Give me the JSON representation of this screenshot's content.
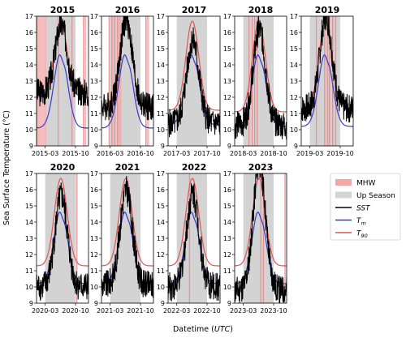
{
  "figure": {
    "ylabel": "Sea Surface Temperature (°C)",
    "xlabel_prefix": "Datetime (",
    "xlabel_unit": "UTC",
    "xlabel_suffix": ")"
  },
  "colors": {
    "mhw_fill": "#f4a6a6",
    "up_season_fill": "#d3d3d3",
    "sst": "#000000",
    "tm": "#3a3acc",
    "t90": "#e05555"
  },
  "legend": {
    "items": [
      {
        "label": "MHW",
        "kind": "patch",
        "color": "#f4a6a6"
      },
      {
        "label": "Up Season",
        "kind": "patch",
        "color": "#d3d3d3"
      },
      {
        "label": "SST",
        "kind": "line",
        "color": "#000000",
        "italic": true
      },
      {
        "label": "T",
        "sub": "m",
        "kind": "line",
        "color": "#3a3acc",
        "italic": true
      },
      {
        "label": "T",
        "sub": "90",
        "kind": "line",
        "color": "#e05555",
        "italic": true
      }
    ]
  },
  "chart_data": [
    {
      "type": "line",
      "title": "2015",
      "ylim": [
        9,
        17
      ],
      "yticks": [
        9,
        10,
        11,
        12,
        13,
        14,
        15,
        16,
        17
      ],
      "xlim_months": [
        0,
        12
      ],
      "xticks": [
        {
          "label": "2015-03",
          "m": 2
        },
        {
          "label": "2015-10",
          "m": 9
        }
      ],
      "up_season": [
        2,
        9
      ],
      "mhw": [
        [
          0.1,
          2.2
        ],
        [
          5.0,
          5.1
        ],
        [
          8.2,
          8.3
        ],
        [
          10.8,
          11.5
        ]
      ],
      "t90_base": 12.0,
      "t90_peak": 16.7,
      "tm_base": 10.1,
      "tm_peak": 14.8,
      "sst_base": 12.3,
      "sst_peak": 16.5
    },
    {
      "type": "line",
      "title": "2016",
      "ylim": [
        9,
        17
      ],
      "yticks": [
        9,
        10,
        11,
        12,
        13,
        14,
        15,
        16,
        17
      ],
      "xlim_months": [
        0,
        12
      ],
      "xticks": [
        {
          "label": "2016-03",
          "m": 2
        },
        {
          "label": "2016-10",
          "m": 9
        }
      ],
      "up_season": [
        2,
        9
      ],
      "mhw": [
        [
          1.7,
          2.0
        ],
        [
          2.4,
          2.7
        ],
        [
          3.0,
          3.3
        ],
        [
          3.7,
          4.6
        ],
        [
          10.2,
          11.0
        ]
      ],
      "t90_base": 11.3,
      "t90_peak": 16.7,
      "tm_base": 10.1,
      "tm_peak": 14.8,
      "sst_base": 11.4,
      "sst_peak": 16.8
    },
    {
      "type": "line",
      "title": "2017",
      "ylim": [
        9,
        17
      ],
      "yticks": [
        9,
        10,
        11,
        12,
        13,
        14,
        15,
        16,
        17
      ],
      "xlim_months": [
        0,
        12
      ],
      "xticks": [
        {
          "label": "2017-03",
          "m": 2
        },
        {
          "label": "2017-10",
          "m": 9
        }
      ],
      "up_season": [
        2,
        9
      ],
      "mhw": [],
      "t90_base": 11.2,
      "t90_peak": 16.7,
      "tm_base": 10.3,
      "tm_peak": 14.8,
      "sst_base": 10.4,
      "sst_peak": 15.5
    },
    {
      "type": "line",
      "title": "2018",
      "ylim": [
        9,
        17
      ],
      "yticks": [
        9,
        10,
        11,
        12,
        13,
        14,
        15,
        16,
        17
      ],
      "xlim_months": [
        0,
        12
      ],
      "xticks": [
        {
          "label": "2018-03",
          "m": 2
        },
        {
          "label": "2018-10",
          "m": 9
        }
      ],
      "up_season": [
        2,
        9
      ],
      "mhw": [
        [
          3.3,
          3.5
        ],
        [
          4.0,
          4.2
        ],
        [
          4.6,
          4.8
        ],
        [
          5.2,
          5.4
        ]
      ],
      "t90_base": 11.1,
      "t90_peak": 16.7,
      "tm_base": 10.2,
      "tm_peak": 14.8,
      "sst_base": 10.3,
      "sst_peak": 16.2
    },
    {
      "type": "line",
      "title": "2019",
      "ylim": [
        9,
        17
      ],
      "yticks": [
        9,
        10,
        11,
        12,
        13,
        14,
        15,
        16,
        17
      ],
      "xlim_months": [
        0,
        12
      ],
      "xticks": [
        {
          "label": "2019-03",
          "m": 2
        },
        {
          "label": "2019-10",
          "m": 9
        }
      ],
      "up_season": [
        2,
        9
      ],
      "mhw": [
        [
          3.5,
          3.6
        ],
        [
          5.4,
          5.6
        ],
        [
          6.0,
          6.3
        ],
        [
          6.5,
          6.8
        ],
        [
          7.2,
          7.5
        ],
        [
          7.9,
          8.1
        ]
      ],
      "t90_base": 11.3,
      "t90_peak": 16.7,
      "tm_base": 10.2,
      "tm_peak": 14.8,
      "sst_base": 11.3,
      "sst_peak": 17.0
    },
    {
      "type": "line",
      "title": "2020",
      "ylim": [
        9,
        17
      ],
      "yticks": [
        9,
        10,
        11,
        12,
        13,
        14,
        15,
        16,
        17
      ],
      "xlim_months": [
        0,
        12
      ],
      "xticks": [
        {
          "label": "2020-03",
          "m": 2
        },
        {
          "label": "2020-10",
          "m": 9
        }
      ],
      "up_season": [
        2,
        9
      ],
      "mhw": [
        [
          9.2,
          9.5
        ]
      ],
      "t90_base": 11.3,
      "t90_peak": 16.7,
      "tm_base": 10.2,
      "tm_peak": 14.8,
      "sst_base": 10.0,
      "sst_peak": 15.6
    },
    {
      "type": "line",
      "title": "2021",
      "ylim": [
        9,
        17
      ],
      "yticks": [
        9,
        10,
        11,
        12,
        13,
        14,
        15,
        16,
        17
      ],
      "xlim_months": [
        0,
        12
      ],
      "xticks": [
        {
          "label": "2021-03",
          "m": 2
        },
        {
          "label": "2021-10",
          "m": 9
        }
      ],
      "up_season": [
        2,
        9
      ],
      "mhw": [],
      "t90_base": 11.3,
      "t90_peak": 16.7,
      "tm_base": 10.2,
      "tm_peak": 14.8,
      "sst_base": 10.1,
      "sst_peak": 16.0
    },
    {
      "type": "line",
      "title": "2022",
      "ylim": [
        9,
        17
      ],
      "yticks": [
        9,
        10,
        11,
        12,
        13,
        14,
        15,
        16,
        17
      ],
      "xlim_months": [
        0,
        12
      ],
      "xticks": [
        {
          "label": "2022-03",
          "m": 2
        },
        {
          "label": "2022-10",
          "m": 9
        }
      ],
      "up_season": [
        2,
        9
      ],
      "mhw": [
        [
          4.9,
          5.1
        ]
      ],
      "t90_base": 11.3,
      "t90_peak": 16.7,
      "tm_base": 10.2,
      "tm_peak": 14.8,
      "sst_base": 10.0,
      "sst_peak": 15.8
    },
    {
      "type": "line",
      "title": "2023",
      "ylim": [
        9,
        17
      ],
      "yticks": [
        9,
        10,
        11,
        12,
        13,
        14,
        15,
        16,
        17
      ],
      "xlim_months": [
        0,
        12
      ],
      "xticks": [
        {
          "label": "2023-03",
          "m": 2
        },
        {
          "label": "2023-10",
          "m": 9
        }
      ],
      "up_season": [
        2,
        9
      ],
      "mhw": [
        [
          6.0,
          6.2
        ],
        [
          6.6,
          6.8
        ],
        [
          11.6,
          11.8
        ]
      ],
      "t90_base": 11.3,
      "t90_peak": 16.7,
      "tm_base": 10.2,
      "tm_peak": 14.8,
      "sst_base": 9.8,
      "sst_peak": 17.6
    }
  ]
}
